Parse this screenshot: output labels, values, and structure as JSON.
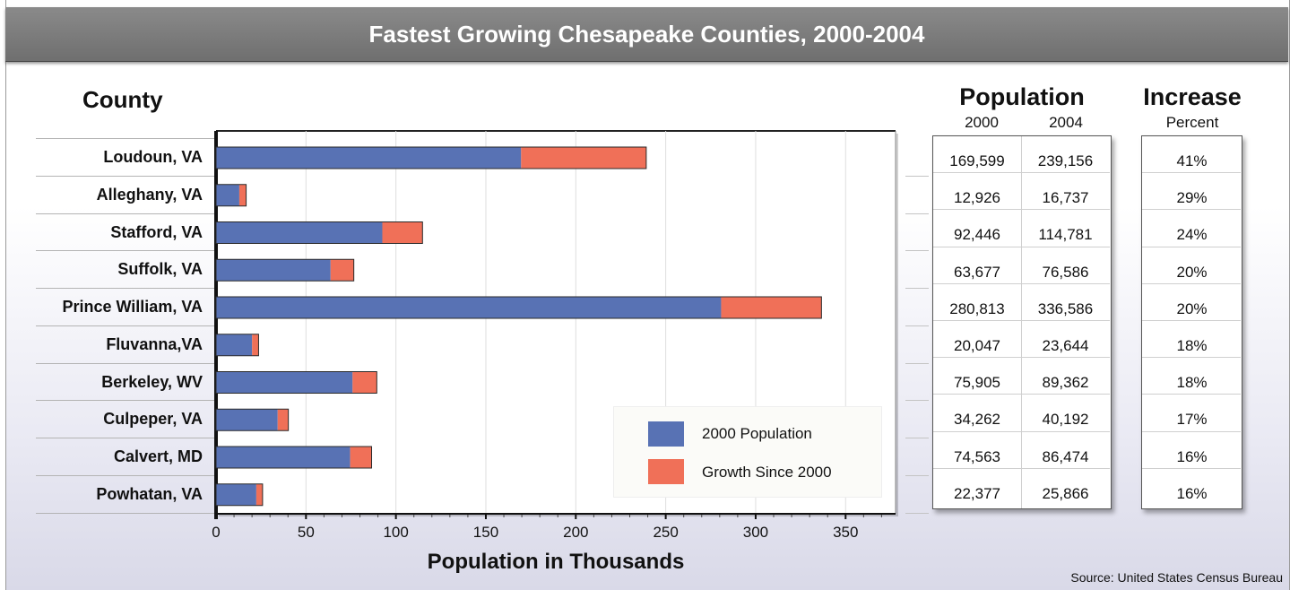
{
  "title": "Fastest Growing Chesapeake Counties,  2000-2004",
  "headers": {
    "county": "County",
    "population": "Population",
    "year_2000": "2000",
    "year_2004": "2004",
    "increase": "Increase",
    "percent": "Percent"
  },
  "source": "Source: United States Census Bureau",
  "colors": {
    "pop2000": "#5872b4",
    "growth": "#f07058",
    "title_bar": "#7d7d7d"
  },
  "chart_data": {
    "type": "bar",
    "orientation": "horizontal",
    "stacked": true,
    "title": "Fastest Growing Chesapeake Counties,  2000-2004",
    "xlabel": "Population in Thousands",
    "ylabel": "County",
    "xlim": [
      0,
      377
    ],
    "xticks": [
      0,
      50,
      100,
      150,
      200,
      250,
      300,
      350
    ],
    "legend_position": "bottom-right",
    "categories": [
      "Loudoun, VA",
      "Alleghany, VA",
      "Stafford, VA",
      "Suffolk, VA",
      "Prince William, VA",
      "Fluvanna,VA",
      "Berkeley, WV",
      "Culpeper, VA",
      "Calvert, MD",
      "Powhatan, VA"
    ],
    "series": [
      {
        "name": "2000 Population",
        "values": [
          169.599,
          12.926,
          92.446,
          63.677,
          280.813,
          20.047,
          75.905,
          34.262,
          74.563,
          22.377
        ]
      },
      {
        "name": "Growth Since 2000",
        "values": [
          69.557,
          3.811,
          22.335,
          12.909,
          55.773,
          3.597,
          13.457,
          5.93,
          11.911,
          3.489
        ]
      }
    ]
  },
  "table": {
    "rows": [
      {
        "pop2000": "169,599",
        "pop2004": "239,156",
        "increase": "41%"
      },
      {
        "pop2000": "12,926",
        "pop2004": "16,737",
        "increase": "29%"
      },
      {
        "pop2000": "92,446",
        "pop2004": "114,781",
        "increase": "24%"
      },
      {
        "pop2000": "63,677",
        "pop2004": "76,586",
        "increase": "20%"
      },
      {
        "pop2000": "280,813",
        "pop2004": "336,586",
        "increase": "20%"
      },
      {
        "pop2000": "20,047",
        "pop2004": "23,644",
        "increase": "18%"
      },
      {
        "pop2000": "75,905",
        "pop2004": "89,362",
        "increase": "18%"
      },
      {
        "pop2000": "34,262",
        "pop2004": "40,192",
        "increase": "17%"
      },
      {
        "pop2000": "74,563",
        "pop2004": "86,474",
        "increase": "16%"
      },
      {
        "pop2000": "22,377",
        "pop2004": "25,866",
        "increase": "16%"
      }
    ]
  }
}
